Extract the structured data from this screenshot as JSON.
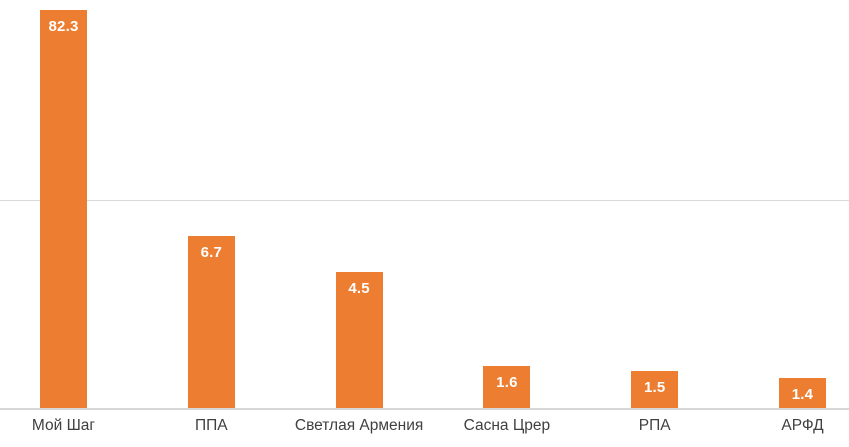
{
  "chart_data": {
    "type": "bar",
    "title": "",
    "xlabel": "",
    "ylabel": "",
    "categories": [
      "Мой Шаг",
      "ППА",
      "Светлая Армения",
      "Сасна Црер",
      "РПА",
      "АРФД"
    ],
    "values": [
      82.3,
      6.7,
      4.5,
      1.6,
      1.5,
      1.4
    ],
    "value_labels": [
      "82.3",
      "6.7",
      "4.5",
      "1.6",
      "1.5",
      "1.4"
    ],
    "scale": "log10",
    "ylim": [
      1,
      100
    ],
    "gridlines_at_values": [
      10
    ],
    "grid": "single horizontal gridline, x-axis baseline visible, no y-axis tick labels",
    "legend_position": "none",
    "colors": {
      "bar": "#ED7D31",
      "value_label": "#FFFFFF",
      "category_label": "#404040",
      "gridline": "#D9D9D9",
      "axis_line": "#D6D6D6",
      "background": "#FFFFFF"
    }
  }
}
